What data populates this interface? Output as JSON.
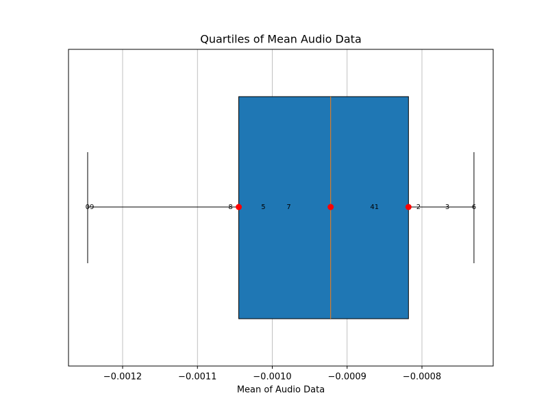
{
  "chart_data": {
    "type": "box",
    "title": "Quartiles of Mean Audio Data",
    "xlabel": "Mean of Audio Data",
    "stats": {
      "whislo": -0.0012467,
      "q1": -0.0010448,
      "med": -0.000922,
      "q3": -0.000818,
      "whishi": -0.0007305
    },
    "color": "#1f77b4",
    "median_color": "#ff7f0e",
    "point_color": "#ff0000",
    "xlim": [
      -0.0012723,
      -0.0007048
    ],
    "xticks": [
      {
        "value": -0.0012,
        "label": "−0.0012"
      },
      {
        "value": -0.0011,
        "label": "−0.0011"
      },
      {
        "value": -0.001,
        "label": "−0.0010"
      },
      {
        "value": -0.0009,
        "label": "−0.0009"
      },
      {
        "value": -0.0008,
        "label": "−0.0008"
      }
    ],
    "grid": true,
    "annotations": [
      {
        "text": "09",
        "x": -0.0012439
      },
      {
        "text": "8",
        "x": -0.0010558
      },
      {
        "text": "5",
        "x": -0.0010119
      },
      {
        "text": "7",
        "x": -0.000978
      },
      {
        "text": "41",
        "x": -0.0008634
      },
      {
        "text": "2",
        "x": -0.0008046
      },
      {
        "text": "3",
        "x": -0.0007661
      },
      {
        "text": "6",
        "x": -0.0007305
      }
    ]
  }
}
